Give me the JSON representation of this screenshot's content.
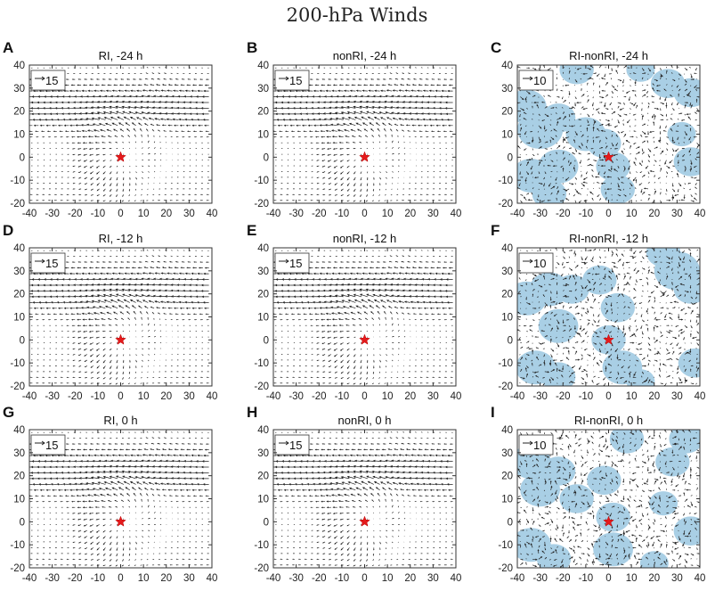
{
  "figure_title": "200-hPa Winds",
  "colors": {
    "shading": "#a9cfe5",
    "star": "#e41a1c",
    "arrow": "#222222"
  },
  "chart_data": [
    {
      "type": "quiver",
      "label": "A",
      "title": "RI, -24 h",
      "field": "full",
      "ref_vector": 15,
      "ref_label": "15",
      "xlim": [
        -40,
        40
      ],
      "ylim": [
        -20,
        40
      ],
      "xticks": [
        "-40",
        "-30",
        "-20",
        "-10",
        "0",
        "10",
        "20",
        "30",
        "40"
      ],
      "yticks": [
        "40",
        "30",
        "20",
        "10",
        "0",
        "-10",
        "-20"
      ],
      "center_marker": {
        "x": 0,
        "y": 0,
        "symbol": "star"
      },
      "variant": 1
    },
    {
      "type": "quiver",
      "label": "B",
      "title": "nonRI, -24 h",
      "field": "full",
      "ref_vector": 15,
      "ref_label": "15",
      "xlim": [
        -40,
        40
      ],
      "ylim": [
        -20,
        40
      ],
      "xticks": [
        "-40",
        "-30",
        "-20",
        "-10",
        "0",
        "10",
        "20",
        "30",
        "40"
      ],
      "yticks": [
        "40",
        "30",
        "20",
        "10",
        "0",
        "-10",
        "-20"
      ],
      "center_marker": {
        "x": 0,
        "y": 0,
        "symbol": "star"
      },
      "variant": 2
    },
    {
      "type": "quiver",
      "label": "C",
      "title": "RI-nonRI, -24 h",
      "field": "difference",
      "shaded": true,
      "ref_vector": 10,
      "ref_label": "10",
      "xlim": [
        -40,
        40
      ],
      "ylim": [
        -20,
        40
      ],
      "xticks": [
        "-40",
        "-30",
        "-20",
        "-10",
        "0",
        "10",
        "20",
        "30",
        "40"
      ],
      "yticks": [
        "40",
        "30",
        "20",
        "10",
        "0",
        "-10",
        "-20"
      ],
      "center_marker": {
        "x": 0,
        "y": 0,
        "symbol": "star"
      },
      "variant": 3
    },
    {
      "type": "quiver",
      "label": "D",
      "title": "RI, -12 h",
      "field": "full",
      "ref_vector": 15,
      "ref_label": "15",
      "xlim": [
        -40,
        40
      ],
      "ylim": [
        -20,
        40
      ],
      "xticks": [
        "-40",
        "-30",
        "-20",
        "-10",
        "0",
        "10",
        "20",
        "30",
        "40"
      ],
      "yticks": [
        "40",
        "30",
        "20",
        "10",
        "0",
        "-10",
        "-20"
      ],
      "center_marker": {
        "x": 0,
        "y": 0,
        "symbol": "star"
      },
      "variant": 4
    },
    {
      "type": "quiver",
      "label": "E",
      "title": "nonRI, -12 h",
      "field": "full",
      "ref_vector": 15,
      "ref_label": "15",
      "xlim": [
        -40,
        40
      ],
      "ylim": [
        -20,
        40
      ],
      "xticks": [
        "-40",
        "-30",
        "-20",
        "-10",
        "0",
        "10",
        "20",
        "30",
        "40"
      ],
      "yticks": [
        "40",
        "30",
        "20",
        "10",
        "0",
        "-10",
        "-20"
      ],
      "center_marker": {
        "x": 0,
        "y": 0,
        "symbol": "star"
      },
      "variant": 5
    },
    {
      "type": "quiver",
      "label": "F",
      "title": "RI-nonRI, -12 h",
      "field": "difference",
      "shaded": true,
      "ref_vector": 10,
      "ref_label": "10",
      "xlim": [
        -40,
        40
      ],
      "ylim": [
        -20,
        40
      ],
      "xticks": [
        "-40",
        "-30",
        "-20",
        "-10",
        "0",
        "10",
        "20",
        "30",
        "40"
      ],
      "yticks": [
        "40",
        "30",
        "20",
        "10",
        "0",
        "-10",
        "-20"
      ],
      "center_marker": {
        "x": 0,
        "y": 0,
        "symbol": "star"
      },
      "variant": 6
    },
    {
      "type": "quiver",
      "label": "G",
      "title": "RI, 0 h",
      "field": "full",
      "ref_vector": 15,
      "ref_label": "15",
      "xlim": [
        -40,
        40
      ],
      "ylim": [
        -20,
        40
      ],
      "xticks": [
        "-40",
        "-30",
        "-20",
        "-10",
        "0",
        "10",
        "20",
        "30",
        "40"
      ],
      "yticks": [
        "40",
        "30",
        "20",
        "10",
        "0",
        "-10",
        "-20"
      ],
      "center_marker": {
        "x": 0,
        "y": 0,
        "symbol": "star"
      },
      "variant": 7
    },
    {
      "type": "quiver",
      "label": "H",
      "title": "nonRI, 0 h",
      "field": "full",
      "ref_vector": 15,
      "ref_label": "15",
      "xlim": [
        -40,
        40
      ],
      "ylim": [
        -20,
        40
      ],
      "xticks": [
        "-40",
        "-30",
        "-20",
        "-10",
        "0",
        "10",
        "20",
        "30",
        "40"
      ],
      "yticks": [
        "40",
        "30",
        "20",
        "10",
        "0",
        "-10",
        "-20"
      ],
      "center_marker": {
        "x": 0,
        "y": 0,
        "symbol": "star"
      },
      "variant": 8
    },
    {
      "type": "quiver",
      "label": "I",
      "title": "RI-nonRI, 0 h",
      "field": "difference",
      "shaded": true,
      "ref_vector": 10,
      "ref_label": "10",
      "xlim": [
        -40,
        40
      ],
      "ylim": [
        -20,
        40
      ],
      "xticks": [
        "-40",
        "-30",
        "-20",
        "-10",
        "0",
        "10",
        "20",
        "30",
        "40"
      ],
      "yticks": [
        "40",
        "30",
        "20",
        "10",
        "0",
        "-10",
        "-20"
      ],
      "center_marker": {
        "x": 0,
        "y": 0,
        "symbol": "star"
      },
      "variant": 9
    }
  ]
}
